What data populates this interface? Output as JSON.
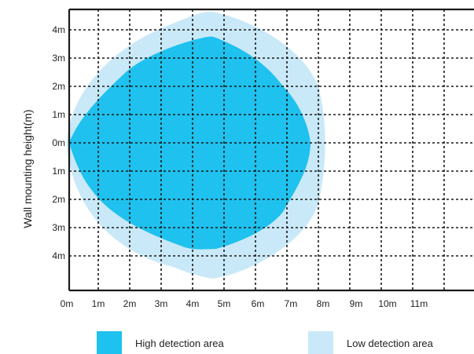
{
  "y_axis_label": "Wall mounting height(m)",
  "y_ticks": [
    "4m",
    "3m",
    "2m",
    "1m",
    "0m",
    "1m",
    "2m",
    "3m",
    "4m"
  ],
  "x_ticks": [
    "0m",
    "1m",
    "2m",
    "3m",
    "4m",
    "5m",
    "6m",
    "7m",
    "8m",
    "9m",
    "10m",
    "11m"
  ],
  "legend": {
    "high_label": "High detection area",
    "low_label": "Low detection area"
  },
  "colors": {
    "high": "#1fc1ee",
    "low": "#c9e9f8",
    "grid_frame": "#1a1a1a"
  }
}
